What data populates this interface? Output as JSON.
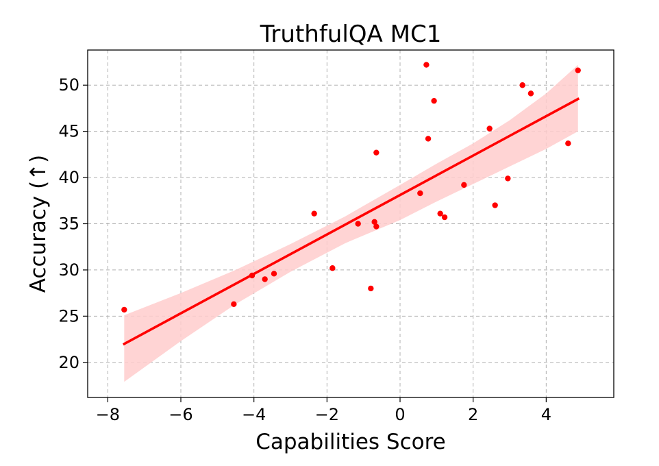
{
  "chart_data": {
    "type": "scatter",
    "title": "TruthfulQA MC1",
    "xlabel": "Capabilities Score",
    "ylabel": "Accuracy (↑)",
    "xlim": [
      -8.55,
      5.85
    ],
    "ylim": [
      16.2,
      53.8
    ],
    "xticks": [
      -8,
      -6,
      -4,
      -2,
      0,
      2,
      4
    ],
    "xtick_labels": [
      "−8",
      "−6",
      "−4",
      "−2",
      "0",
      "2",
      "4"
    ],
    "yticks": [
      20,
      25,
      30,
      35,
      40,
      45,
      50
    ],
    "ytick_labels": [
      "20",
      "25",
      "30",
      "35",
      "40",
      "45",
      "50"
    ],
    "grid": true,
    "color": "#ff0000",
    "band_color": "#ffcccc",
    "points": [
      {
        "x": -7.55,
        "y": 25.7
      },
      {
        "x": -4.55,
        "y": 26.3
      },
      {
        "x": -4.05,
        "y": 29.4
      },
      {
        "x": -3.7,
        "y": 29.0
      },
      {
        "x": -3.45,
        "y": 29.6
      },
      {
        "x": -2.35,
        "y": 36.1
      },
      {
        "x": -1.85,
        "y": 30.2
      },
      {
        "x": -1.15,
        "y": 35.0
      },
      {
        "x": -0.8,
        "y": 28.0
      },
      {
        "x": -0.7,
        "y": 35.2
      },
      {
        "x": -0.65,
        "y": 34.7
      },
      {
        "x": -0.65,
        "y": 42.7
      },
      {
        "x": 0.55,
        "y": 38.3
      },
      {
        "x": 0.72,
        "y": 52.2
      },
      {
        "x": 0.77,
        "y": 44.2
      },
      {
        "x": 0.93,
        "y": 48.3
      },
      {
        "x": 1.1,
        "y": 36.1
      },
      {
        "x": 1.22,
        "y": 35.7
      },
      {
        "x": 1.75,
        "y": 39.2
      },
      {
        "x": 2.45,
        "y": 45.3
      },
      {
        "x": 2.6,
        "y": 37.0
      },
      {
        "x": 2.95,
        "y": 39.9
      },
      {
        "x": 3.35,
        "y": 50.0
      },
      {
        "x": 3.58,
        "y": 49.1
      },
      {
        "x": 4.6,
        "y": 43.7
      },
      {
        "x": 4.87,
        "y": 51.6
      }
    ],
    "regression": {
      "x": [
        -7.55,
        4.87
      ],
      "y": [
        22.0,
        48.5
      ]
    },
    "confidence_band": {
      "x": [
        -7.55,
        -6.0,
        -4.5,
        -3.0,
        -1.5,
        0.0,
        1.0,
        2.0,
        3.0,
        4.0,
        4.87
      ],
      "lower": [
        17.9,
        22.3,
        26.3,
        29.8,
        32.9,
        35.4,
        37.4,
        39.3,
        41.2,
        43.1,
        45.0
      ],
      "upper": [
        25.1,
        27.5,
        30.0,
        32.8,
        35.8,
        39.2,
        41.5,
        43.7,
        46.2,
        49.1,
        52.2
      ]
    }
  }
}
